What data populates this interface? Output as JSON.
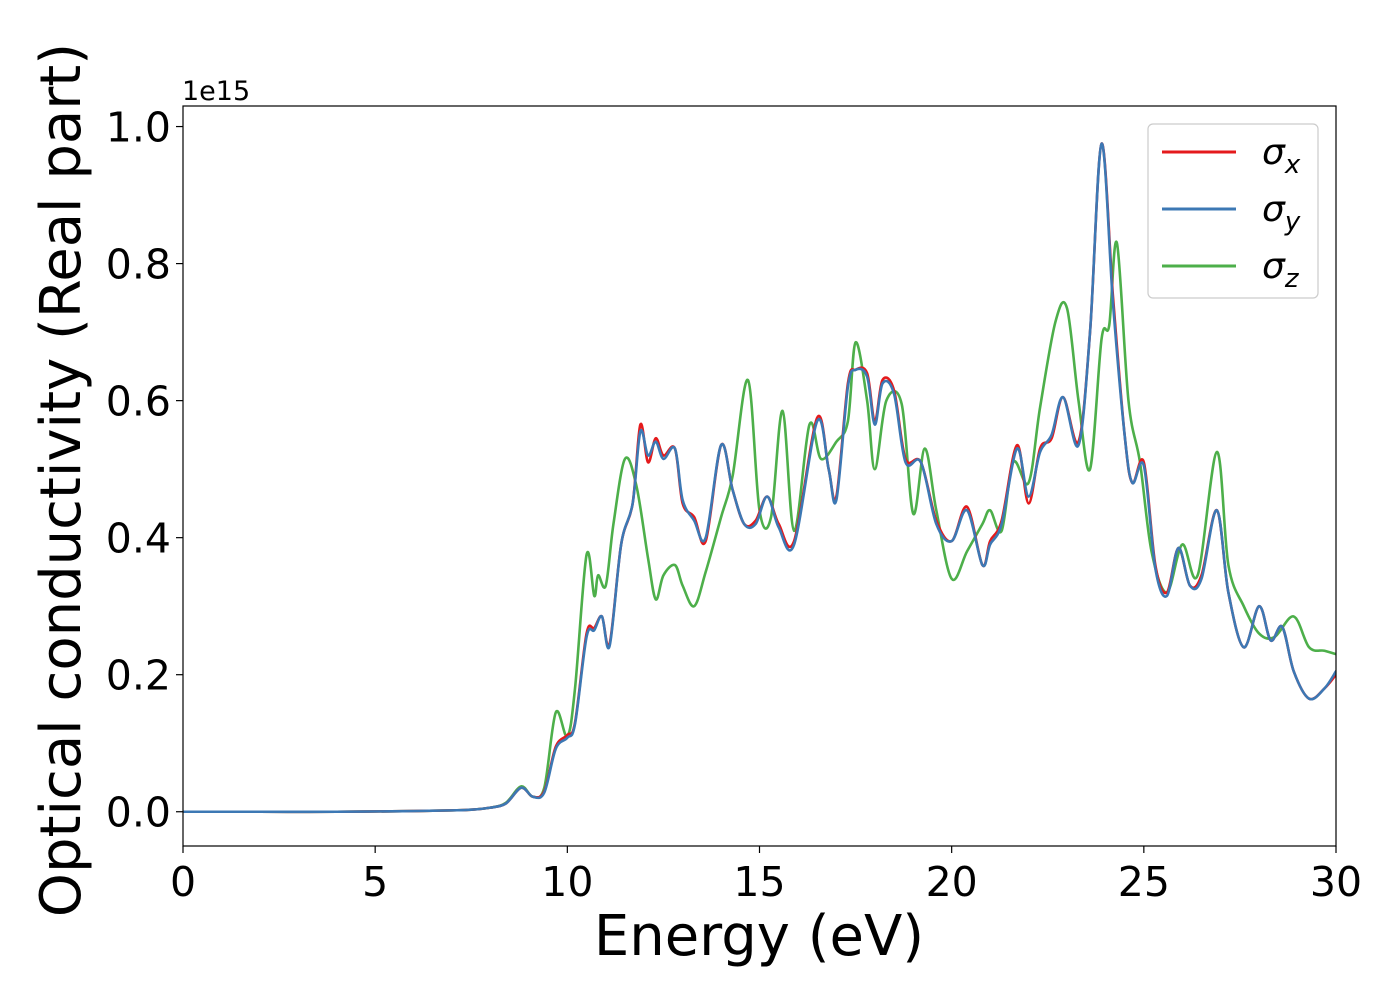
{
  "chart_data": {
    "type": "line",
    "xlabel": "Energy (eV)",
    "ylabel": "Optical conductivity (Real part)",
    "y_offset_text": "1e15",
    "xlim": [
      0,
      30
    ],
    "ylim": [
      -0.05,
      1.03
    ],
    "x_ticks": [
      0,
      5,
      10,
      15,
      20,
      25,
      30
    ],
    "y_ticks": [
      0.0,
      0.2,
      0.4,
      0.6,
      0.8,
      1.0
    ],
    "x_tick_labels": [
      "0",
      "5",
      "10",
      "15",
      "20",
      "25",
      "30"
    ],
    "y_tick_labels": [
      "0.0",
      "0.2",
      "0.4",
      "0.6",
      "0.8",
      "1.0"
    ],
    "grid": false,
    "legend_position": "top-right",
    "series": [
      {
        "name": "σx",
        "legend_symbol": "σ",
        "legend_subscript": "x",
        "color": "#e41a1c",
        "points": [
          [
            0,
            0.0
          ],
          [
            2,
            0.0
          ],
          [
            4,
            0.0
          ],
          [
            6,
            0.001
          ],
          [
            7,
            0.002
          ],
          [
            7.5,
            0.003
          ],
          [
            8,
            0.006
          ],
          [
            8.4,
            0.012
          ],
          [
            8.8,
            0.035
          ],
          [
            9.1,
            0.022
          ],
          [
            9.4,
            0.03
          ],
          [
            9.7,
            0.095
          ],
          [
            10.0,
            0.112
          ],
          [
            10.2,
            0.13
          ],
          [
            10.5,
            0.26
          ],
          [
            10.7,
            0.268
          ],
          [
            10.9,
            0.285
          ],
          [
            11.1,
            0.245
          ],
          [
            11.4,
            0.39
          ],
          [
            11.7,
            0.45
          ],
          [
            11.9,
            0.565
          ],
          [
            12.1,
            0.51
          ],
          [
            12.3,
            0.545
          ],
          [
            12.5,
            0.52
          ],
          [
            12.8,
            0.53
          ],
          [
            13.0,
            0.45
          ],
          [
            13.3,
            0.43
          ],
          [
            13.6,
            0.395
          ],
          [
            14.0,
            0.535
          ],
          [
            14.3,
            0.47
          ],
          [
            14.6,
            0.42
          ],
          [
            14.9,
            0.425
          ],
          [
            15.2,
            0.46
          ],
          [
            15.5,
            0.42
          ],
          [
            15.9,
            0.395
          ],
          [
            16.5,
            0.575
          ],
          [
            16.8,
            0.5
          ],
          [
            17.0,
            0.46
          ],
          [
            17.3,
            0.625
          ],
          [
            17.5,
            0.645
          ],
          [
            17.8,
            0.64
          ],
          [
            18.0,
            0.57
          ],
          [
            18.2,
            0.63
          ],
          [
            18.5,
            0.615
          ],
          [
            18.8,
            0.515
          ],
          [
            19.2,
            0.51
          ],
          [
            19.6,
            0.425
          ],
          [
            20.0,
            0.395
          ],
          [
            20.4,
            0.445
          ],
          [
            20.8,
            0.36
          ],
          [
            21.0,
            0.395
          ],
          [
            21.3,
            0.425
          ],
          [
            21.7,
            0.535
          ],
          [
            22.0,
            0.45
          ],
          [
            22.3,
            0.53
          ],
          [
            22.6,
            0.545
          ],
          [
            22.9,
            0.605
          ],
          [
            23.3,
            0.54
          ],
          [
            23.6,
            0.7
          ],
          [
            23.9,
            0.975
          ],
          [
            24.2,
            0.75
          ],
          [
            24.5,
            0.55
          ],
          [
            24.7,
            0.48
          ],
          [
            25.0,
            0.51
          ],
          [
            25.3,
            0.36
          ],
          [
            25.6,
            0.32
          ],
          [
            25.9,
            0.385
          ],
          [
            26.2,
            0.33
          ],
          [
            26.5,
            0.345
          ],
          [
            26.9,
            0.44
          ],
          [
            27.2,
            0.32
          ],
          [
            27.6,
            0.24
          ],
          [
            28.0,
            0.3
          ],
          [
            28.3,
            0.25
          ],
          [
            28.6,
            0.27
          ],
          [
            28.9,
            0.205
          ],
          [
            29.3,
            0.165
          ],
          [
            29.7,
            0.18
          ],
          [
            30.0,
            0.2
          ]
        ]
      },
      {
        "name": "σy",
        "legend_symbol": "σ",
        "legend_subscript": "y",
        "color": "#3c78b4",
        "points": [
          [
            0,
            0.0
          ],
          [
            2,
            0.0
          ],
          [
            4,
            0.0
          ],
          [
            6,
            0.001
          ],
          [
            7,
            0.002
          ],
          [
            7.5,
            0.003
          ],
          [
            8,
            0.006
          ],
          [
            8.4,
            0.012
          ],
          [
            8.8,
            0.035
          ],
          [
            9.1,
            0.022
          ],
          [
            9.4,
            0.028
          ],
          [
            9.7,
            0.092
          ],
          [
            10.0,
            0.108
          ],
          [
            10.2,
            0.128
          ],
          [
            10.5,
            0.255
          ],
          [
            10.7,
            0.265
          ],
          [
            10.9,
            0.285
          ],
          [
            11.1,
            0.242
          ],
          [
            11.4,
            0.39
          ],
          [
            11.7,
            0.45
          ],
          [
            11.9,
            0.555
          ],
          [
            12.1,
            0.52
          ],
          [
            12.3,
            0.54
          ],
          [
            12.5,
            0.515
          ],
          [
            12.8,
            0.53
          ],
          [
            13.0,
            0.455
          ],
          [
            13.3,
            0.425
          ],
          [
            13.6,
            0.4
          ],
          [
            14.0,
            0.535
          ],
          [
            14.3,
            0.47
          ],
          [
            14.6,
            0.42
          ],
          [
            14.9,
            0.42
          ],
          [
            15.2,
            0.46
          ],
          [
            15.5,
            0.415
          ],
          [
            15.9,
            0.39
          ],
          [
            16.5,
            0.57
          ],
          [
            16.8,
            0.5
          ],
          [
            17.0,
            0.455
          ],
          [
            17.3,
            0.62
          ],
          [
            17.5,
            0.645
          ],
          [
            17.8,
            0.635
          ],
          [
            18.0,
            0.565
          ],
          [
            18.2,
            0.625
          ],
          [
            18.5,
            0.61
          ],
          [
            18.8,
            0.51
          ],
          [
            19.2,
            0.51
          ],
          [
            19.6,
            0.42
          ],
          [
            20.0,
            0.395
          ],
          [
            20.4,
            0.44
          ],
          [
            20.8,
            0.36
          ],
          [
            21.0,
            0.39
          ],
          [
            21.3,
            0.42
          ],
          [
            21.7,
            0.53
          ],
          [
            22.0,
            0.46
          ],
          [
            22.3,
            0.525
          ],
          [
            22.6,
            0.55
          ],
          [
            22.9,
            0.605
          ],
          [
            23.3,
            0.535
          ],
          [
            23.6,
            0.7
          ],
          [
            23.9,
            0.975
          ],
          [
            24.2,
            0.74
          ],
          [
            24.5,
            0.55
          ],
          [
            24.7,
            0.48
          ],
          [
            25.0,
            0.505
          ],
          [
            25.3,
            0.355
          ],
          [
            25.6,
            0.315
          ],
          [
            25.9,
            0.385
          ],
          [
            26.2,
            0.33
          ],
          [
            26.5,
            0.34
          ],
          [
            26.9,
            0.44
          ],
          [
            27.2,
            0.32
          ],
          [
            27.6,
            0.24
          ],
          [
            28.0,
            0.3
          ],
          [
            28.3,
            0.25
          ],
          [
            28.6,
            0.27
          ],
          [
            28.9,
            0.205
          ],
          [
            29.3,
            0.165
          ],
          [
            29.7,
            0.18
          ],
          [
            30.0,
            0.205
          ]
        ]
      },
      {
        "name": "σz",
        "legend_symbol": "σ",
        "legend_subscript": "z",
        "color": "#4daf4a",
        "points": [
          [
            0,
            0.0
          ],
          [
            2,
            0.0
          ],
          [
            4,
            0.0
          ],
          [
            6,
            0.001
          ],
          [
            7,
            0.002
          ],
          [
            7.5,
            0.003
          ],
          [
            8,
            0.006
          ],
          [
            8.4,
            0.013
          ],
          [
            8.8,
            0.037
          ],
          [
            9.1,
            0.022
          ],
          [
            9.4,
            0.035
          ],
          [
            9.7,
            0.145
          ],
          [
            10.0,
            0.11
          ],
          [
            10.2,
            0.18
          ],
          [
            10.5,
            0.375
          ],
          [
            10.7,
            0.315
          ],
          [
            10.8,
            0.345
          ],
          [
            11.0,
            0.33
          ],
          [
            11.2,
            0.42
          ],
          [
            11.5,
            0.515
          ],
          [
            11.8,
            0.475
          ],
          [
            12.1,
            0.37
          ],
          [
            12.3,
            0.31
          ],
          [
            12.5,
            0.345
          ],
          [
            12.8,
            0.36
          ],
          [
            13.0,
            0.33
          ],
          [
            13.3,
            0.3
          ],
          [
            13.6,
            0.35
          ],
          [
            14.0,
            0.43
          ],
          [
            14.3,
            0.49
          ],
          [
            14.7,
            0.63
          ],
          [
            15.0,
            0.44
          ],
          [
            15.3,
            0.43
          ],
          [
            15.6,
            0.585
          ],
          [
            15.9,
            0.41
          ],
          [
            16.3,
            0.565
          ],
          [
            16.6,
            0.515
          ],
          [
            17.0,
            0.54
          ],
          [
            17.3,
            0.57
          ],
          [
            17.5,
            0.685
          ],
          [
            17.8,
            0.6
          ],
          [
            18.0,
            0.5
          ],
          [
            18.3,
            0.6
          ],
          [
            18.7,
            0.595
          ],
          [
            19.0,
            0.435
          ],
          [
            19.3,
            0.53
          ],
          [
            19.6,
            0.44
          ],
          [
            20.0,
            0.34
          ],
          [
            20.4,
            0.38
          ],
          [
            20.8,
            0.42
          ],
          [
            21.0,
            0.44
          ],
          [
            21.3,
            0.41
          ],
          [
            21.6,
            0.51
          ],
          [
            22.0,
            0.48
          ],
          [
            22.3,
            0.59
          ],
          [
            22.7,
            0.715
          ],
          [
            23.0,
            0.735
          ],
          [
            23.3,
            0.6
          ],
          [
            23.6,
            0.5
          ],
          [
            23.9,
            0.69
          ],
          [
            24.1,
            0.71
          ],
          [
            24.3,
            0.83
          ],
          [
            24.6,
            0.6
          ],
          [
            24.9,
            0.51
          ],
          [
            25.2,
            0.38
          ],
          [
            25.6,
            0.32
          ],
          [
            26.0,
            0.39
          ],
          [
            26.4,
            0.345
          ],
          [
            26.9,
            0.525
          ],
          [
            27.2,
            0.36
          ],
          [
            27.6,
            0.3
          ],
          [
            28.0,
            0.26
          ],
          [
            28.4,
            0.255
          ],
          [
            28.9,
            0.285
          ],
          [
            29.3,
            0.24
          ],
          [
            29.7,
            0.235
          ],
          [
            30.0,
            0.23
          ]
        ]
      }
    ]
  }
}
